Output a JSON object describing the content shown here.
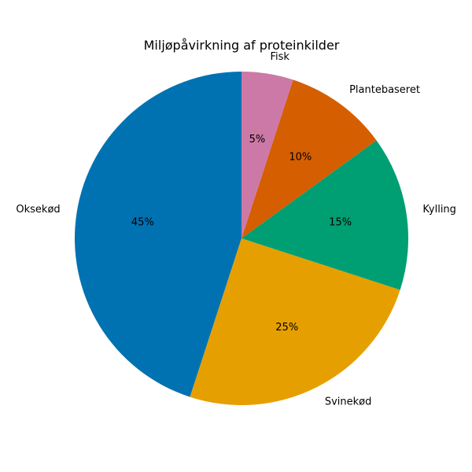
{
  "chart_data": {
    "type": "pie",
    "title": "Miljøpåvirkning af proteinkilder",
    "slices": [
      {
        "label": "Oksekød",
        "value": 45,
        "pct_label": "45%",
        "color": "#0072B2"
      },
      {
        "label": "Svinekød",
        "value": 25,
        "pct_label": "25%",
        "color": "#E69F00"
      },
      {
        "label": "Kylling",
        "value": 15,
        "pct_label": "15%",
        "color": "#009E73"
      },
      {
        "label": "Plantebaseret",
        "value": 10,
        "pct_label": "10%",
        "color": "#D55E00"
      },
      {
        "label": "Fisk",
        "value": 5,
        "pct_label": "5%",
        "color": "#CC79A7"
      }
    ],
    "start": "top",
    "direction": "counterclockwise"
  }
}
